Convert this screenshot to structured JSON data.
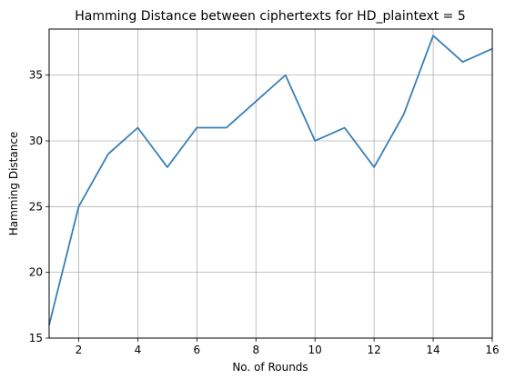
{
  "chart_data": {
    "type": "line",
    "title": "Hamming Distance between ciphertexts for HD_plaintext = 5",
    "xlabel": "No. of Rounds",
    "ylabel": "Hamming Distance",
    "x": [
      1,
      2,
      3,
      4,
      5,
      6,
      7,
      8,
      9,
      10,
      11,
      12,
      13,
      14,
      15,
      16
    ],
    "series": [
      {
        "values": [
          16,
          25,
          29,
          31,
          28,
          31,
          31,
          33,
          35,
          30,
          31,
          28,
          32,
          38,
          36,
          37
        ]
      }
    ],
    "xlim": [
      1,
      16
    ],
    "ylim": [
      15,
      38.5
    ],
    "xticks": [
      2,
      4,
      6,
      8,
      10,
      12,
      14,
      16
    ],
    "yticks": [
      15,
      20,
      25,
      30,
      35
    ],
    "xtick_labels": [
      "2",
      "4",
      "6",
      "8",
      "10",
      "12",
      "14",
      "16"
    ],
    "ytick_labels": [
      "15",
      "20",
      "25",
      "30",
      "35"
    ],
    "grid": true,
    "line_color": "#3a7fb5"
  }
}
